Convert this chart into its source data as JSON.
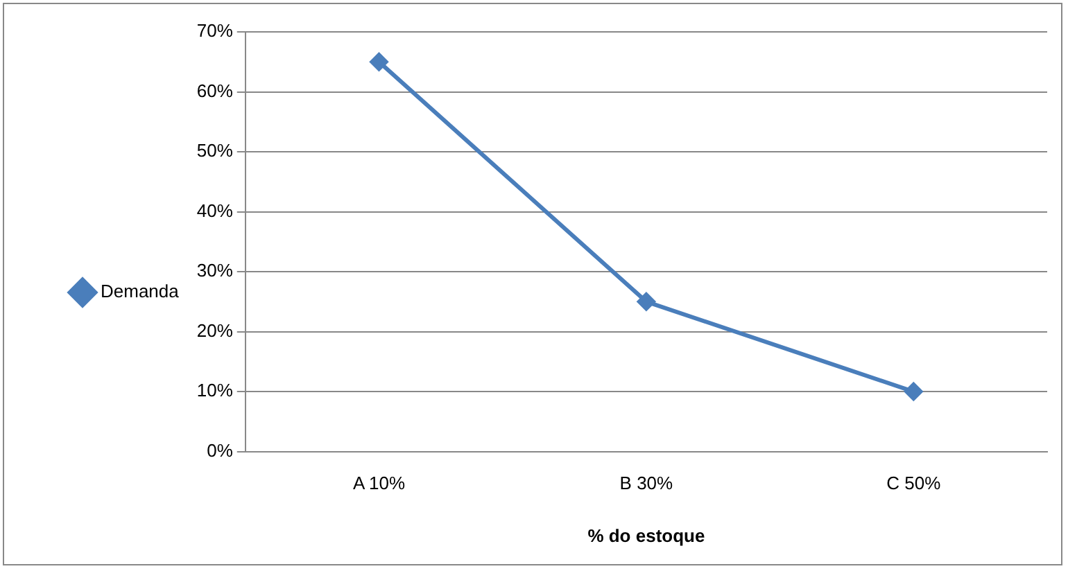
{
  "chart_data": {
    "type": "line",
    "xlabel": "% do estoque",
    "categories": [
      "A 10%",
      "B 30%",
      "C 50%"
    ],
    "series": [
      {
        "name": "Demanda",
        "color": "#4a7ebb",
        "values": [
          65,
          25,
          10
        ]
      }
    ],
    "ylim": [
      0,
      70
    ],
    "yticks": [
      {
        "value": 0,
        "label": "0%"
      },
      {
        "value": 10,
        "label": "10%"
      },
      {
        "value": 20,
        "label": "20%"
      },
      {
        "value": 30,
        "label": "30%"
      },
      {
        "value": 40,
        "label": "40%"
      },
      {
        "value": 50,
        "label": "50%"
      },
      {
        "value": 60,
        "label": "60%"
      },
      {
        "value": 70,
        "label": "70%"
      }
    ],
    "grid": "y",
    "legend": "left",
    "marker": "diamond",
    "line_style": "solid"
  }
}
